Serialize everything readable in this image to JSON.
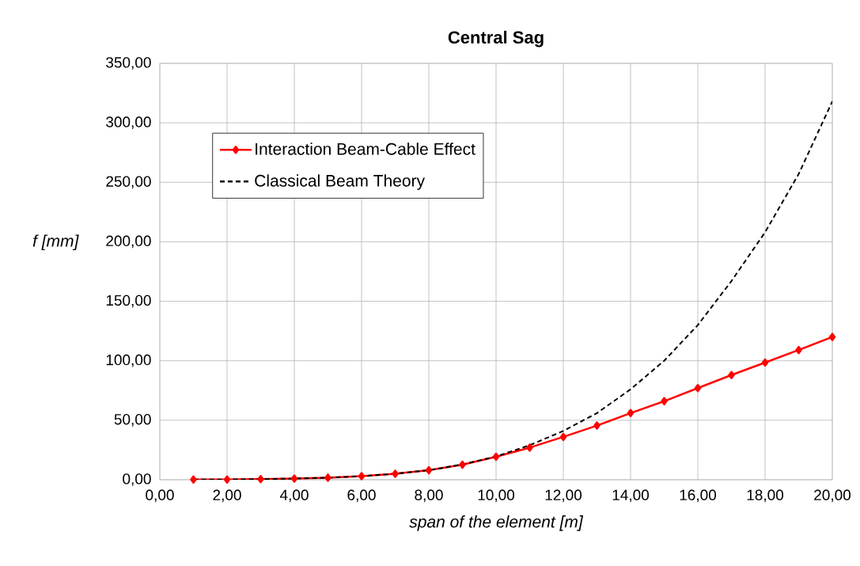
{
  "chart_data": {
    "type": "line",
    "title": "Central Sag",
    "xlabel": "span of the element [m]",
    "ylabel": "f [mm]",
    "x": [
      1,
      2,
      3,
      4,
      5,
      6,
      7,
      8,
      9,
      10,
      11,
      12,
      13,
      14,
      15,
      16,
      17,
      18,
      19,
      20
    ],
    "series": [
      {
        "name": "Interaction Beam-Cable Effect",
        "color": "#ff0000",
        "marker": "diamond",
        "line_style": "solid",
        "values": [
          0.1,
          0.2,
          0.5,
          1,
          1.7,
          3,
          5,
          8,
          12.6,
          19.3,
          27,
          36,
          45.5,
          56,
          66,
          77,
          88,
          98.5,
          109,
          120
        ]
      },
      {
        "name": "Classical Beam Theory",
        "color": "#000000",
        "marker": "none",
        "line_style": "dashed",
        "values": [
          0.1,
          0.2,
          0.5,
          1,
          1.7,
          3,
          5,
          8,
          12.8,
          19.5,
          29,
          41,
          56,
          76,
          100,
          130,
          167,
          208,
          257,
          318
        ]
      }
    ],
    "xlim": [
      0,
      20
    ],
    "ylim": [
      0,
      350
    ],
    "xticks": [
      {
        "value": 0,
        "label": "0,00"
      },
      {
        "value": 2,
        "label": "2,00"
      },
      {
        "value": 4,
        "label": "4,00"
      },
      {
        "value": 6,
        "label": "6,00"
      },
      {
        "value": 8,
        "label": "8,00"
      },
      {
        "value": 10,
        "label": "10,00"
      },
      {
        "value": 12,
        "label": "12,00"
      },
      {
        "value": 14,
        "label": "14,00"
      },
      {
        "value": 16,
        "label": "16,00"
      },
      {
        "value": 18,
        "label": "18,00"
      },
      {
        "value": 20,
        "label": "20,00"
      }
    ],
    "yticks": [
      {
        "value": 0,
        "label": "0,00"
      },
      {
        "value": 50,
        "label": "50,00"
      },
      {
        "value": 100,
        "label": "100,00"
      },
      {
        "value": 150,
        "label": "150,00"
      },
      {
        "value": 200,
        "label": "200,00"
      },
      {
        "value": 250,
        "label": "250,00"
      },
      {
        "value": 300,
        "label": "300,00"
      },
      {
        "value": 350,
        "label": "350,00"
      }
    ],
    "grid": true,
    "legend": "top left"
  }
}
